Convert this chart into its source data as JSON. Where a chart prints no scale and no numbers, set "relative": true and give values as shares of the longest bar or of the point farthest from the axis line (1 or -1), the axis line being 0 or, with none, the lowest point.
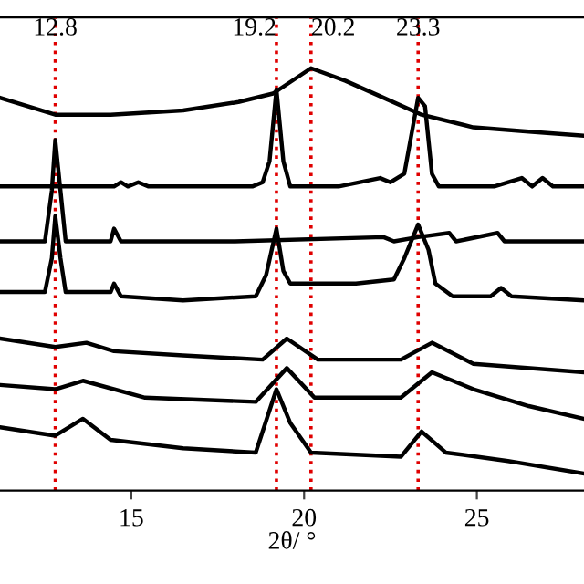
{
  "chart_data": {
    "type": "line",
    "relative": true,
    "xlabel": "2θ/ °",
    "xlim": [
      11.2,
      28.1
    ],
    "xticks": [
      15,
      20,
      25
    ],
    "grid": false,
    "marker": "none",
    "line_style": "solid",
    "tick_labels": "x",
    "ref_lines": [
      {
        "axis": "x",
        "value": 12.8,
        "label": "12.8",
        "color": "#e00000",
        "line_style": "dotted"
      },
      {
        "axis": "x",
        "value": 19.2,
        "label": "19.2",
        "color": "#e00000",
        "line_style": "dotted"
      },
      {
        "axis": "x",
        "value": 20.2,
        "label": "20.2",
        "color": "#e00000",
        "line_style": "dotted"
      },
      {
        "axis": "x",
        "value": 23.3,
        "label": "23.3",
        "color": "#e00000",
        "line_style": "dotted"
      }
    ],
    "series": [
      {
        "color": "#000000",
        "x": [
          11.2,
          12.8,
          14.4,
          16.5,
          18.1,
          19.1,
          20.2,
          21.2,
          22.3,
          23.4,
          24.9,
          26.5,
          28.1
        ],
        "values": [
          0.93,
          0.89,
          0.89,
          0.9,
          0.92,
          0.94,
          1.0,
          0.97,
          0.93,
          0.89,
          0.86,
          0.85,
          0.84
        ]
      },
      {
        "color": "#000000",
        "x": [
          11.2,
          12.8,
          14.5,
          14.7,
          14.9,
          15.2,
          15.5,
          17,
          18.5,
          18.8,
          19.0,
          19.2,
          19.4,
          19.6,
          21,
          22.2,
          22.5,
          22.9,
          23.1,
          23.3,
          23.5,
          23.7,
          23.9,
          25.5,
          26.3,
          26.6,
          26.9,
          27.2,
          28.1
        ],
        "values": [
          0.72,
          0.72,
          0.72,
          0.73,
          0.72,
          0.73,
          0.72,
          0.72,
          0.72,
          0.73,
          0.78,
          0.95,
          0.78,
          0.72,
          0.72,
          0.74,
          0.73,
          0.75,
          0.84,
          0.93,
          0.91,
          0.75,
          0.72,
          0.72,
          0.74,
          0.72,
          0.74,
          0.72,
          0.72
        ]
      },
      {
        "color": "#000000",
        "x": [
          11.2,
          12.5,
          12.7,
          12.8,
          12.95,
          13.1,
          14.4,
          14.5,
          14.7,
          18,
          22.3,
          22.6,
          23.3,
          24.2,
          24.4,
          25.6,
          25.8,
          28.1
        ],
        "values": [
          0.59,
          0.59,
          0.71,
          0.83,
          0.71,
          0.59,
          0.59,
          0.62,
          0.59,
          0.59,
          0.6,
          0.59,
          0.6,
          0.61,
          0.59,
          0.61,
          0.59,
          0.59
        ]
      },
      {
        "color": "#000000",
        "x": [
          11.2,
          12.5,
          12.7,
          12.8,
          12.95,
          13.1,
          14.4,
          14.5,
          14.7,
          16.5,
          18.6,
          18.9,
          19.2,
          19.4,
          19.6,
          21.5,
          22.6,
          22.9,
          23.3,
          23.6,
          23.8,
          24.3,
          25.4,
          25.7,
          26,
          28.1
        ],
        "values": [
          0.47,
          0.47,
          0.55,
          0.65,
          0.55,
          0.47,
          0.47,
          0.49,
          0.46,
          0.45,
          0.46,
          0.51,
          0.62,
          0.52,
          0.49,
          0.49,
          0.5,
          0.55,
          0.63,
          0.57,
          0.49,
          0.46,
          0.46,
          0.48,
          0.46,
          0.45
        ]
      },
      {
        "color": "#000000",
        "x": [
          11.2,
          12.8,
          13.7,
          14.5,
          16.5,
          18.8,
          19.5,
          20.4,
          22.8,
          23.7,
          24.9,
          28.1
        ],
        "values": [
          0.36,
          0.34,
          0.35,
          0.33,
          0.32,
          0.31,
          0.36,
          0.31,
          0.31,
          0.35,
          0.3,
          0.28
        ]
      },
      {
        "color": "#000000",
        "x": [
          11.2,
          12.8,
          13.6,
          15.4,
          18.6,
          19.5,
          20.3,
          22.8,
          23.7,
          24.9,
          26.5,
          28.1
        ],
        "values": [
          0.25,
          0.24,
          0.26,
          0.22,
          0.21,
          0.29,
          0.22,
          0.22,
          0.28,
          0.24,
          0.2,
          0.17
        ]
      },
      {
        "color": "#000000",
        "x": [
          11.2,
          12.8,
          13.6,
          14.4,
          16.5,
          18.6,
          19.2,
          19.6,
          20.2,
          22.8,
          23.4,
          24.1,
          25.9,
          28.1
        ],
        "values": [
          0.15,
          0.13,
          0.17,
          0.12,
          0.1,
          0.09,
          0.24,
          0.16,
          0.09,
          0.08,
          0.14,
          0.09,
          0.07,
          0.04
        ]
      }
    ]
  }
}
